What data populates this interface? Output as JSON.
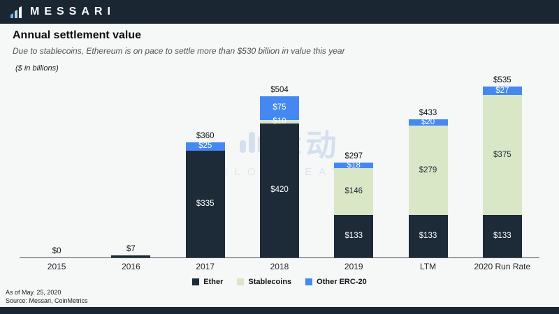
{
  "header": {
    "brand": "MESSARI"
  },
  "title": "Annual settlement value",
  "subtitle": "Due to stablecoins, Ethereum is on pace to settle more than $530 billion in value this year",
  "units_note": "($ in billions)",
  "watermark": {
    "cjk": "律动",
    "latin": "BLOCKBEATS"
  },
  "footer": {
    "as_of": "As of May. 25, 2020",
    "source": "Source: Messari, CoinMetrics"
  },
  "legend": [
    "Ether",
    "Stablecoins",
    "Other ERC-20"
  ],
  "colors": {
    "background": "#f6f7f7",
    "bar_dark_navy": "#1b2633",
    "series": {
      "Ether": "#1d2b39",
      "Stablecoins": "#d9e7c7",
      "Other ERC-20": "#4688f1"
    },
    "series_label_color": {
      "Ether": "#ffffff",
      "Stablecoins": "#1d2b39",
      "Other ERC-20": "#ffffff"
    }
  },
  "chart_data": {
    "type": "bar",
    "stacked": true,
    "title": "Annual settlement value",
    "ylabel": "$ in billions",
    "xlabel": "",
    "grid": false,
    "legend_position": "bottom",
    "ylim": [
      0,
      550
    ],
    "categories": [
      "2015",
      "2016",
      "2017",
      "2018",
      "2019",
      "LTM",
      "2020 Run Rate"
    ],
    "series": [
      {
        "name": "Ether",
        "values": [
          0,
          7,
          335,
          420,
          133,
          133,
          133
        ]
      },
      {
        "name": "Stablecoins",
        "values": [
          0,
          0,
          0,
          10,
          146,
          279,
          375
        ]
      },
      {
        "name": "Other ERC-20",
        "values": [
          0,
          0,
          25,
          75,
          18,
          20,
          27
        ]
      }
    ],
    "totals": [
      0,
      7,
      360,
      504,
      297,
      433,
      535
    ],
    "totals_display": [
      "$0",
      "$7",
      "$360",
      "$504",
      "$297",
      "$433",
      "$535"
    ],
    "segment_labels_shown": {
      "2017": [
        "$335",
        "$25"
      ],
      "2018": [
        "$420",
        "$10",
        "$75"
      ],
      "2019": [
        "$133",
        "$146",
        "$18"
      ],
      "LTM": [
        "$133",
        "$279",
        "$20"
      ],
      "2020 Run Rate": [
        "$133",
        "$375",
        "$27"
      ]
    }
  }
}
